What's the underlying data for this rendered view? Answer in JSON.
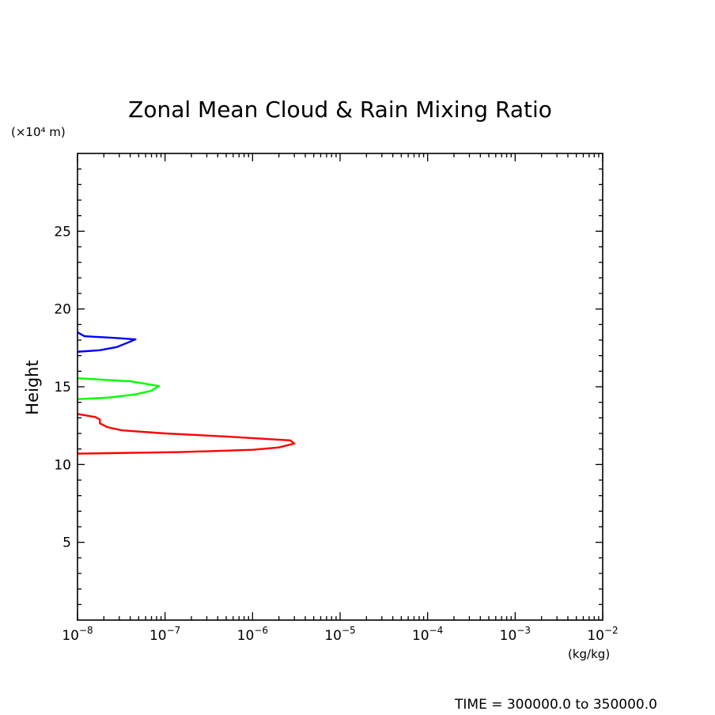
{
  "chart_data": {
    "type": "line",
    "title": "Zonal Mean Cloud & Rain Mixing Ratio",
    "ylabel": "Height",
    "yunit": "(×10⁴ m)",
    "xunit": "(kg/kg)",
    "xscale": "log",
    "xlim": [
      1e-08,
      0.01
    ],
    "ylim": [
      0,
      30
    ],
    "yticks": [
      5,
      10,
      15,
      20,
      25
    ],
    "xticks": [
      {
        "value": 1e-08,
        "mantissa": "10",
        "exp": "−8"
      },
      {
        "value": 1e-07,
        "mantissa": "10",
        "exp": "−7"
      },
      {
        "value": 1e-06,
        "mantissa": "10",
        "exp": "−6"
      },
      {
        "value": 1e-05,
        "mantissa": "10",
        "exp": "−5"
      },
      {
        "value": 0.0001,
        "mantissa": "10",
        "exp": "−4"
      },
      {
        "value": 0.001,
        "mantissa": "10",
        "exp": "−3"
      },
      {
        "value": 0.01,
        "mantissa": "10",
        "exp": "−2"
      }
    ],
    "grid": false,
    "series": [
      {
        "color": "#0000ff",
        "points": [
          [
            1e-08,
            18.5
          ],
          [
            1.2e-08,
            18.25
          ],
          [
            2.5e-08,
            18.15
          ],
          [
            4.6e-08,
            18.05
          ],
          [
            3.8e-08,
            17.85
          ],
          [
            2.8e-08,
            17.55
          ],
          [
            1.8e-08,
            17.35
          ],
          [
            1e-08,
            17.25
          ]
        ]
      },
      {
        "color": "#00ff00",
        "points": [
          [
            1e-08,
            15.55
          ],
          [
            4e-08,
            15.35
          ],
          [
            8.5e-08,
            15.05
          ],
          [
            7e-08,
            14.75
          ],
          [
            4.5e-08,
            14.5
          ],
          [
            2.2e-08,
            14.3
          ],
          [
            1e-08,
            14.2
          ]
        ]
      },
      {
        "color": "#ff0000",
        "points": [
          [
            1e-08,
            13.25
          ],
          [
            1.6e-08,
            13.05
          ],
          [
            1.8e-08,
            12.9
          ],
          [
            1.8e-08,
            12.65
          ],
          [
            2.2e-08,
            12.4
          ],
          [
            3.2e-08,
            12.2
          ],
          [
            1e-07,
            12.0
          ],
          [
            5e-07,
            11.8
          ],
          [
            2.7e-06,
            11.55
          ],
          [
            3e-06,
            11.35
          ],
          [
            2e-06,
            11.1
          ],
          [
            1e-06,
            10.95
          ],
          [
            1.5e-07,
            10.8
          ],
          [
            1e-08,
            10.7
          ]
        ]
      }
    ]
  },
  "footer": {
    "time_range": "TIME = 300000.0 to 350000.0"
  }
}
